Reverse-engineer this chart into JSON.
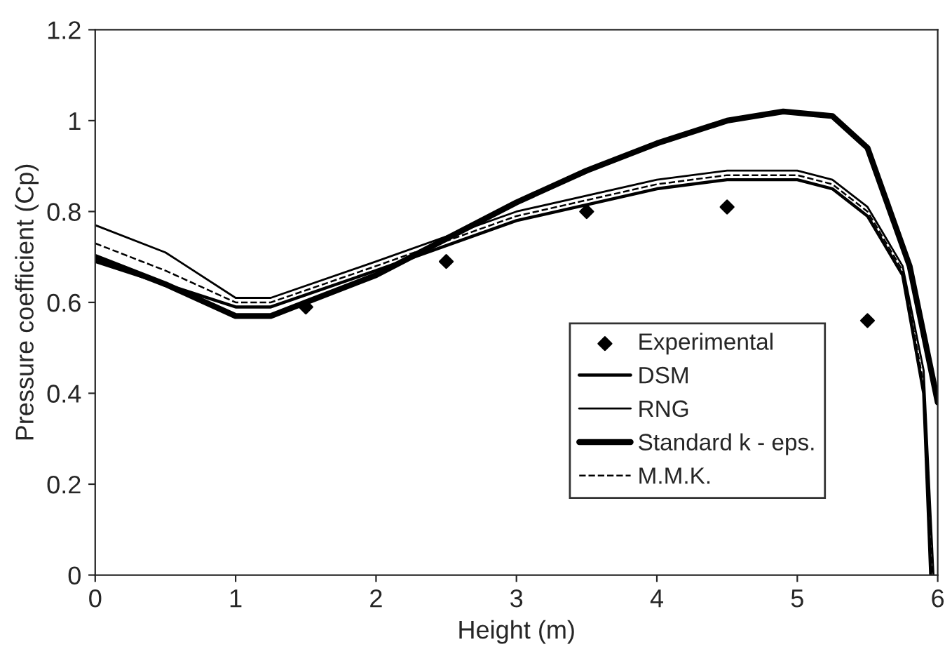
{
  "chart_data": {
    "type": "line",
    "xlabel": "Height (m)",
    "ylabel": "Pressure coefficient (Cp)",
    "xlim": [
      0,
      6
    ],
    "ylim": [
      0,
      1.2
    ],
    "xticks": [
      0,
      1,
      2,
      3,
      4,
      5,
      6
    ],
    "yticks": [
      0,
      0.2,
      0.4,
      0.6,
      0.8,
      1,
      1.2
    ],
    "grid": false,
    "legend": "lower right",
    "series": [
      {
        "name": "Experimental",
        "type": "scatter",
        "marker": "diamond",
        "color": "#000000",
        "x": [
          1.5,
          2.5,
          3.5,
          4.5,
          5.5
        ],
        "values": [
          0.59,
          0.69,
          0.8,
          0.81,
          0.56
        ]
      },
      {
        "name": "DSM",
        "color": "#000000",
        "line_style": "solid",
        "x": [
          0,
          0.5,
          1,
          1.25,
          2,
          3,
          4,
          4.5,
          5,
          5.25,
          5.5,
          5.75,
          5.9,
          5.95
        ],
        "values": [
          0.69,
          0.64,
          0.59,
          0.59,
          0.67,
          0.78,
          0.85,
          0.87,
          0.87,
          0.85,
          0.79,
          0.66,
          0.4,
          0
        ]
      },
      {
        "name": "RNG",
        "color": "#000000",
        "line_style": "solid",
        "x": [
          0,
          0.5,
          1,
          1.25,
          2,
          3,
          4,
          4.5,
          5,
          5.25,
          5.5,
          5.75,
          5.9,
          5.97
        ],
        "values": [
          0.77,
          0.71,
          0.61,
          0.61,
          0.69,
          0.8,
          0.87,
          0.89,
          0.89,
          0.87,
          0.81,
          0.68,
          0.45,
          0
        ]
      },
      {
        "name": "Standard k - eps.",
        "color": "#000000",
        "line_style": "solid",
        "x": [
          0,
          0.5,
          1,
          1.25,
          1.5,
          2,
          2.5,
          3,
          3.5,
          4,
          4.5,
          4.9,
          5.25,
          5.5,
          5.8,
          6
        ],
        "values": [
          0.7,
          0.64,
          0.57,
          0.57,
          0.6,
          0.66,
          0.74,
          0.82,
          0.89,
          0.95,
          1.0,
          1.02,
          1.01,
          0.94,
          0.68,
          0.38
        ]
      },
      {
        "name": "M.M.K.",
        "color": "#000000",
        "line_style": "dashed",
        "x": [
          0,
          0.5,
          1,
          1.25,
          2,
          3,
          4,
          4.5,
          5,
          5.25,
          5.5,
          5.75,
          5.9,
          5.96
        ],
        "values": [
          0.73,
          0.67,
          0.6,
          0.6,
          0.68,
          0.79,
          0.86,
          0.88,
          0.88,
          0.86,
          0.8,
          0.67,
          0.42,
          0
        ]
      }
    ]
  }
}
